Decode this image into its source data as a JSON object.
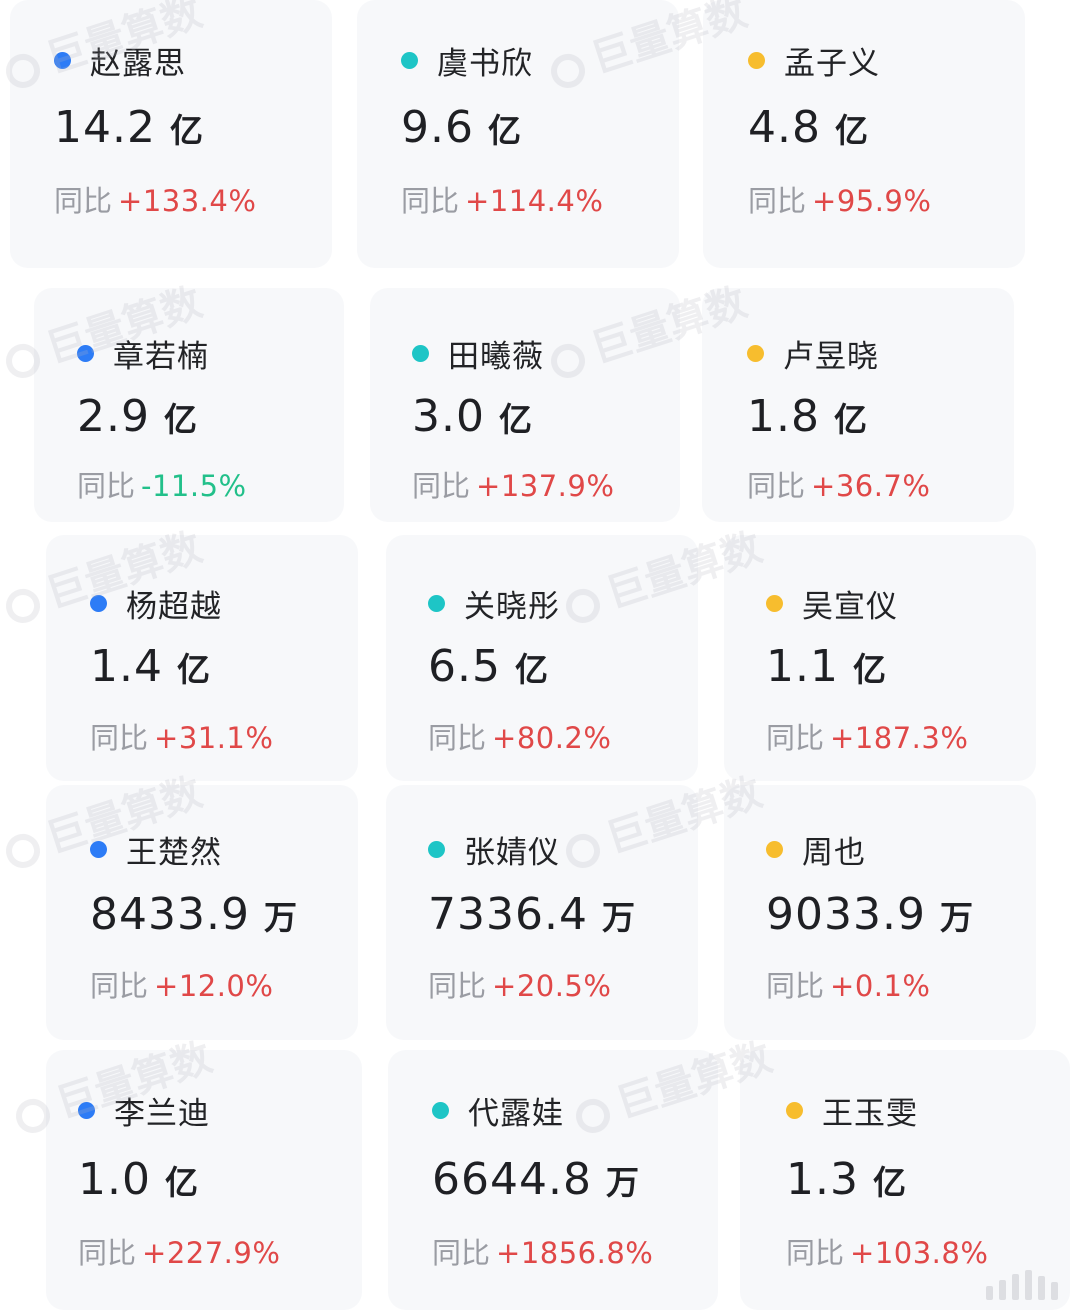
{
  "colors": {
    "dot_blue": "#2d7cf6",
    "dot_teal": "#1ec5c6",
    "dot_yellow": "#f7bd2e",
    "positive": "#e04848",
    "negative": "#22c08a",
    "label_gray": "#9a9ca3",
    "card_bg": "#f7f8fa"
  },
  "watermark_text": "巨量算数",
  "yoy_label": "同比",
  "cards": [
    {
      "name": "赵露思",
      "dot": "blue",
      "value": "14.2",
      "unit": "亿",
      "yoy": "+133.4%",
      "trend": "positive"
    },
    {
      "name": "虞书欣",
      "dot": "teal",
      "value": "9.6",
      "unit": "亿",
      "yoy": "+114.4%",
      "trend": "positive"
    },
    {
      "name": "孟子义",
      "dot": "yellow",
      "value": "4.8",
      "unit": "亿",
      "yoy": "+95.9%",
      "trend": "positive"
    },
    {
      "name": "章若楠",
      "dot": "blue",
      "value": "2.9",
      "unit": "亿",
      "yoy": "-11.5%",
      "trend": "negative"
    },
    {
      "name": "田曦薇",
      "dot": "teal",
      "value": "3.0",
      "unit": "亿",
      "yoy": "+137.9%",
      "trend": "positive"
    },
    {
      "name": "卢昱晓",
      "dot": "yellow",
      "value": "1.8",
      "unit": "亿",
      "yoy": "+36.7%",
      "trend": "positive"
    },
    {
      "name": "杨超越",
      "dot": "blue",
      "value": "1.4",
      "unit": "亿",
      "yoy": "+31.1%",
      "trend": "positive"
    },
    {
      "name": "关晓彤",
      "dot": "teal",
      "value": "6.5",
      "unit": "亿",
      "yoy": "+80.2%",
      "trend": "positive"
    },
    {
      "name": "吴宣仪",
      "dot": "yellow",
      "value": "1.1",
      "unit": "亿",
      "yoy": "+187.3%",
      "trend": "positive"
    },
    {
      "name": "王楚然",
      "dot": "blue",
      "value": "8433.9",
      "unit": "万",
      "yoy": "+12.0%",
      "trend": "positive"
    },
    {
      "name": "张婧仪",
      "dot": "teal",
      "value": "7336.4",
      "unit": "万",
      "yoy": "+20.5%",
      "trend": "positive"
    },
    {
      "name": "周也",
      "dot": "yellow",
      "value": "9033.9",
      "unit": "万",
      "yoy": "+0.1%",
      "trend": "positive"
    },
    {
      "name": "李兰迪",
      "dot": "blue",
      "value": "1.0",
      "unit": "亿",
      "yoy": "+227.9%",
      "trend": "positive"
    },
    {
      "name": "代露娃",
      "dot": "teal",
      "value": "6644.8",
      "unit": "万",
      "yoy": "+1856.8%",
      "trend": "positive"
    },
    {
      "name": "王玉雯",
      "dot": "yellow",
      "value": "1.3",
      "unit": "亿",
      "yoy": "+103.8%",
      "trend": "positive"
    }
  ]
}
